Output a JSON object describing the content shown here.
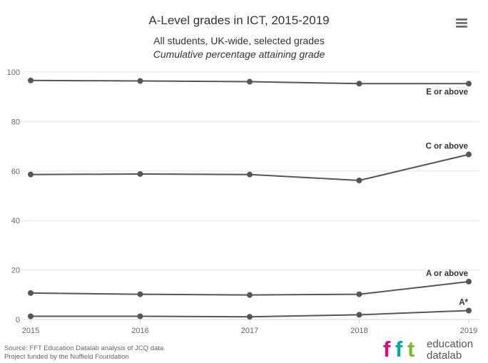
{
  "menu": {
    "icon": "hamburger-menu-icon"
  },
  "chart_data": {
    "type": "line",
    "title": "A-Level grades in ICT, 2015-2019",
    "subtitle_line1": "All students, UK-wide, selected grades",
    "subtitle_line2": "Cumulative percentage attaining grade",
    "x": [
      2015,
      2016,
      2017,
      2018,
      2019
    ],
    "x_ticks": [
      "2015",
      "2016",
      "2017",
      "2018",
      "2019"
    ],
    "y_ticks": [
      "0",
      "20",
      "40",
      "60",
      "80",
      "100"
    ],
    "ylim": [
      0,
      100
    ],
    "grid": true,
    "series": [
      {
        "name": "E or above",
        "values": [
          96.6,
          96.4,
          96.1,
          95.3,
          95.3
        ]
      },
      {
        "name": "C or above",
        "values": [
          58.6,
          58.8,
          58.6,
          56.2,
          66.7
        ]
      },
      {
        "name": "A or above",
        "values": [
          10.7,
          10.2,
          9.9,
          10.2,
          15.3
        ]
      },
      {
        "name": "A*",
        "values": [
          1.3,
          1.3,
          1.1,
          1.9,
          3.6
        ]
      }
    ],
    "colors": {
      "series": "#555555",
      "grid": "#e6e6e6"
    }
  },
  "credits": {
    "line1": "Source: FFT Education Datalab analysis of JCQ data",
    "line2": "Project funded by the Nuffield Foundation"
  },
  "logo": {
    "letters": [
      "f",
      "f",
      "t"
    ],
    "letter_colors": [
      "#e6007e",
      "#00a99d",
      "#7ab929"
    ],
    "word1": "education",
    "word2": "datalab"
  }
}
